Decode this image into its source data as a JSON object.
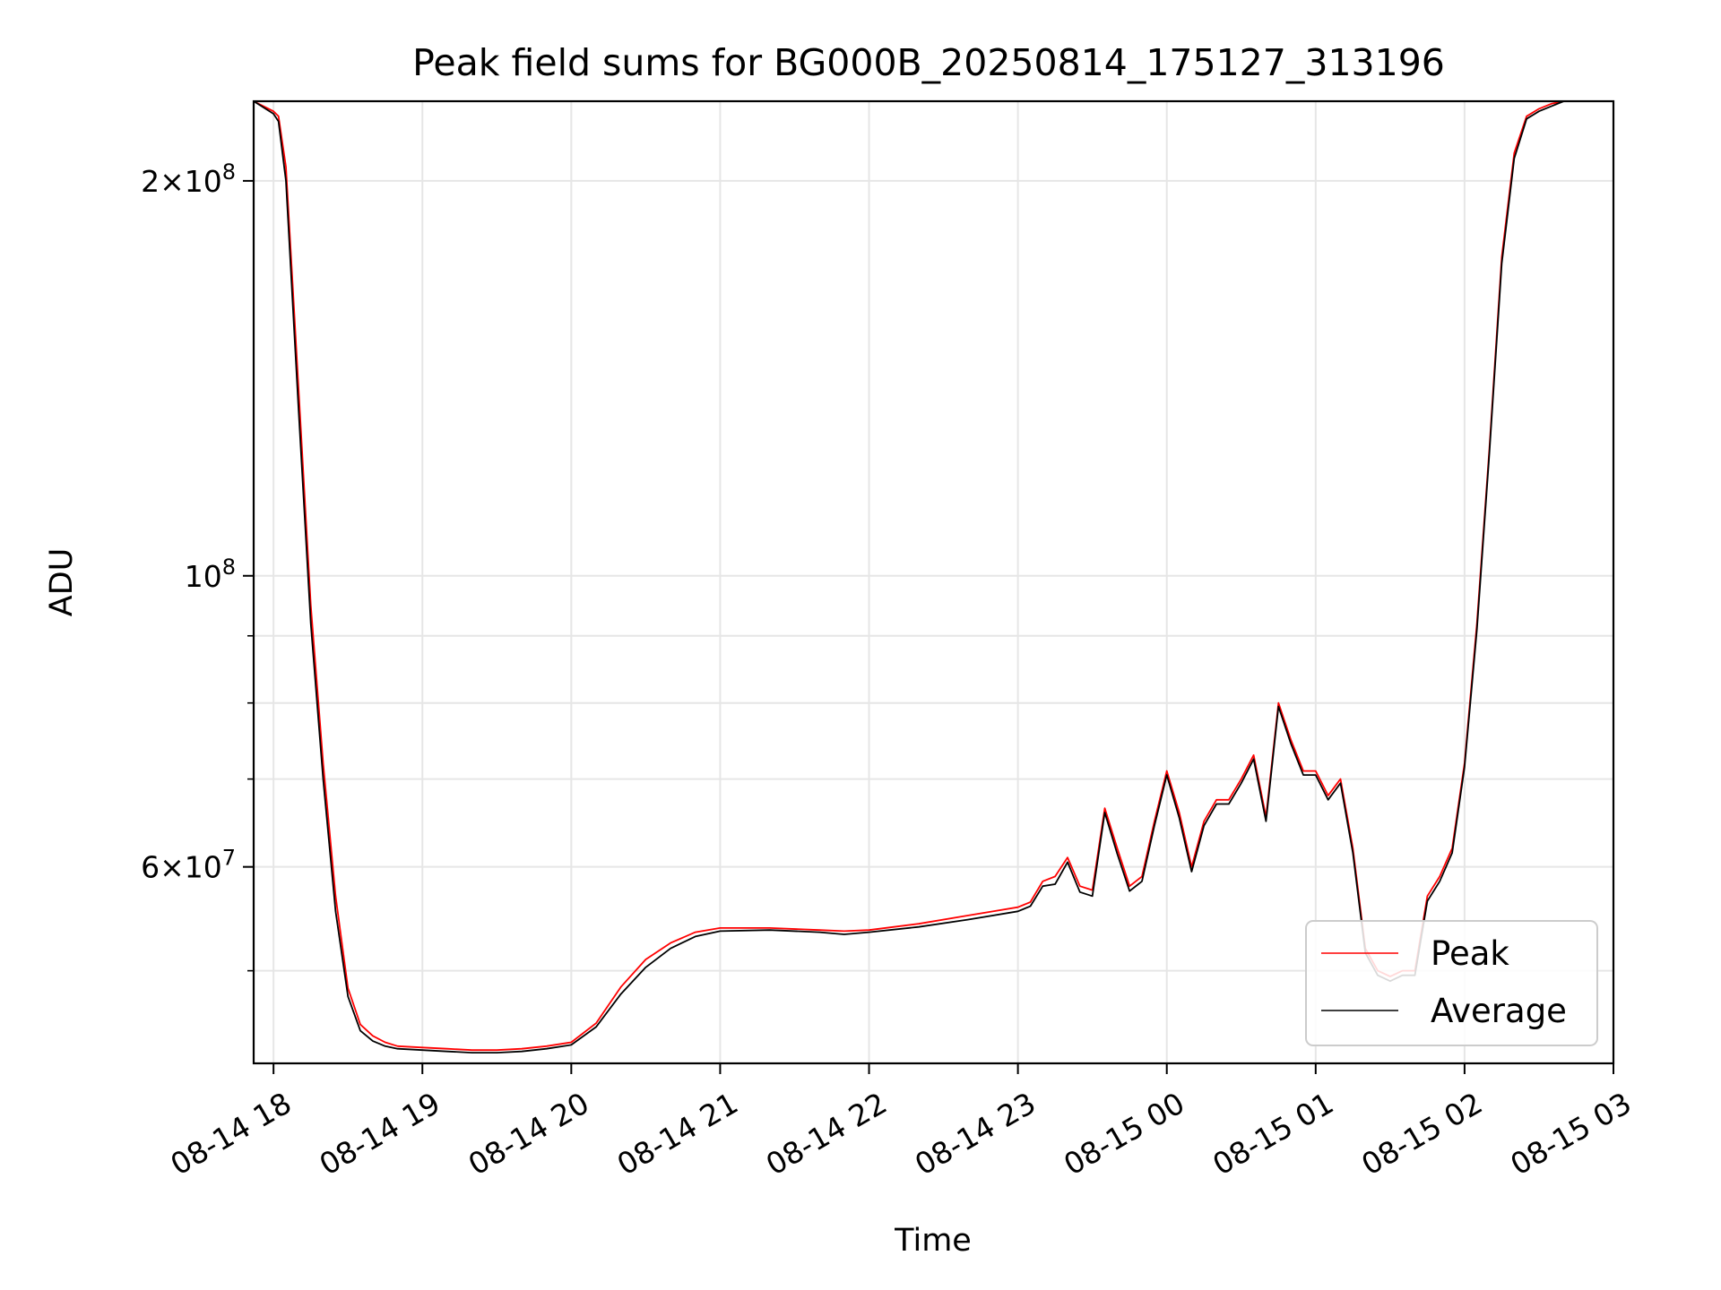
{
  "chart_data": {
    "type": "line",
    "title": "Peak field sums for BG000B_20250814_175127_313196",
    "xlabel": "Time",
    "ylabel": "ADU",
    "yscale": "log",
    "grid": true,
    "legend_position": "lower right",
    "xlim": [
      "08-14 17:52",
      "08-15 03:00"
    ],
    "ylim": [
      42500000,
      230000000
    ],
    "x_ticks": [
      {
        "time": "08-14 18:00",
        "label": "08-14 18"
      },
      {
        "time": "08-14 19:00",
        "label": "08-14 19"
      },
      {
        "time": "08-14 20:00",
        "label": "08-14 20"
      },
      {
        "time": "08-14 21:00",
        "label": "08-14 21"
      },
      {
        "time": "08-14 22:00",
        "label": "08-14 22"
      },
      {
        "time": "08-14 23:00",
        "label": "08-14 23"
      },
      {
        "time": "08-15 00:00",
        "label": "08-15 00"
      },
      {
        "time": "08-15 01:00",
        "label": "08-15 01"
      },
      {
        "time": "08-15 02:00",
        "label": "08-15 02"
      },
      {
        "time": "08-15 03:00",
        "label": "08-15 03"
      }
    ],
    "y_major_ticks": [
      {
        "value": 60000000,
        "label_mantissa": "6",
        "label_exp": "7",
        "form": "times"
      },
      {
        "value": 100000000,
        "label_mantissa": "",
        "label_exp": "8",
        "form": "power"
      },
      {
        "value": 200000000,
        "label_mantissa": "2",
        "label_exp": "8",
        "form": "times"
      }
    ],
    "y_minor_ticks": [
      50000000,
      70000000,
      80000000,
      90000000
    ],
    "series": [
      {
        "name": "Peak",
        "color": "#ff0000",
        "x": [
          "08-14 17:52",
          "08-14 18:00",
          "08-14 18:02",
          "08-14 18:05",
          "08-14 18:10",
          "08-14 18:15",
          "08-14 18:20",
          "08-14 18:25",
          "08-14 18:30",
          "08-14 18:35",
          "08-14 18:40",
          "08-14 18:45",
          "08-14 18:50",
          "08-14 19:00",
          "08-14 19:10",
          "08-14 19:20",
          "08-14 19:30",
          "08-14 19:40",
          "08-14 19:50",
          "08-14 20:00",
          "08-14 20:10",
          "08-14 20:20",
          "08-14 20:30",
          "08-14 20:40",
          "08-14 20:50",
          "08-14 21:00",
          "08-14 21:20",
          "08-14 21:40",
          "08-14 21:50",
          "08-14 22:00",
          "08-14 22:20",
          "08-14 22:40",
          "08-14 23:00",
          "08-14 23:05",
          "08-14 23:10",
          "08-14 23:15",
          "08-14 23:20",
          "08-14 23:25",
          "08-14 23:30",
          "08-14 23:35",
          "08-14 23:40",
          "08-14 23:45",
          "08-14 23:50",
          "08-14 23:55",
          "08-15 00:00",
          "08-15 00:05",
          "08-15 00:10",
          "08-15 00:15",
          "08-15 00:20",
          "08-15 00:25",
          "08-15 00:30",
          "08-15 00:35",
          "08-15 00:40",
          "08-15 00:45",
          "08-15 00:50",
          "08-15 00:55",
          "08-15 01:00",
          "08-15 01:05",
          "08-15 01:10",
          "08-15 01:15",
          "08-15 01:20",
          "08-15 01:25",
          "08-15 01:30",
          "08-15 01:35",
          "08-15 01:40",
          "08-15 01:45",
          "08-15 01:50",
          "08-15 01:55",
          "08-15 02:00",
          "08-15 02:05",
          "08-15 02:10",
          "08-15 02:15",
          "08-15 02:20",
          "08-15 02:25",
          "08-15 02:30",
          "08-15 02:35",
          "08-15 02:40",
          "08-15 02:45",
          "08-15 02:50",
          "08-15 02:55",
          "08-15 03:00"
        ],
        "y": [
          230000000,
          226000000,
          224000000,
          205000000,
          140000000,
          95000000,
          72000000,
          57000000,
          48500000,
          45500000,
          44600000,
          44100000,
          43800000,
          43700000,
          43600000,
          43500000,
          43500000,
          43600000,
          43800000,
          44100000,
          45600000,
          48600000,
          51000000,
          52500000,
          53500000,
          53900000,
          53900000,
          53700000,
          53600000,
          53700000,
          54300000,
          55100000,
          55900000,
          56400000,
          58500000,
          59000000,
          61000000,
          58000000,
          57600000,
          66500000,
          62000000,
          58000000,
          59000000,
          65000000,
          71000000,
          66000000,
          60000000,
          65000000,
          67500000,
          67500000,
          70000000,
          73000000,
          65500000,
          80000000,
          75000000,
          71000000,
          71000000,
          68000000,
          70000000,
          62000000,
          52000000,
          50000000,
          49500000,
          50000000,
          50000000,
          57000000,
          59000000,
          62000000,
          72000000,
          92000000,
          125000000,
          175000000,
          210000000,
          224000000,
          227000000,
          229000000,
          230000000,
          230000000,
          230000000,
          230000000,
          230000000
        ]
      },
      {
        "name": "Average",
        "color": "#000000",
        "x": [
          "08-14 17:52",
          "08-14 18:00",
          "08-14 18:02",
          "08-14 18:05",
          "08-14 18:10",
          "08-14 18:15",
          "08-14 18:20",
          "08-14 18:25",
          "08-14 18:30",
          "08-14 18:35",
          "08-14 18:40",
          "08-14 18:45",
          "08-14 18:50",
          "08-14 19:00",
          "08-14 19:10",
          "08-14 19:20",
          "08-14 19:30",
          "08-14 19:40",
          "08-14 19:50",
          "08-14 20:00",
          "08-14 20:10",
          "08-14 20:20",
          "08-14 20:30",
          "08-14 20:40",
          "08-14 20:50",
          "08-14 21:00",
          "08-14 21:20",
          "08-14 21:40",
          "08-14 21:50",
          "08-14 22:00",
          "08-14 22:20",
          "08-14 22:40",
          "08-14 23:00",
          "08-14 23:05",
          "08-14 23:10",
          "08-14 23:15",
          "08-14 23:20",
          "08-14 23:25",
          "08-14 23:30",
          "08-14 23:35",
          "08-14 23:40",
          "08-14 23:45",
          "08-14 23:50",
          "08-14 23:55",
          "08-15 00:00",
          "08-15 00:05",
          "08-15 00:10",
          "08-15 00:15",
          "08-15 00:20",
          "08-15 00:25",
          "08-15 00:30",
          "08-15 00:35",
          "08-15 00:40",
          "08-15 00:45",
          "08-15 00:50",
          "08-15 00:55",
          "08-15 01:00",
          "08-15 01:05",
          "08-15 01:10",
          "08-15 01:15",
          "08-15 01:20",
          "08-15 01:25",
          "08-15 01:30",
          "08-15 01:35",
          "08-15 01:40",
          "08-15 01:45",
          "08-15 01:50",
          "08-15 01:55",
          "08-15 02:00",
          "08-15 02:05",
          "08-15 02:10",
          "08-15 02:15",
          "08-15 02:20",
          "08-15 02:25",
          "08-15 02:30",
          "08-15 02:35",
          "08-15 02:40",
          "08-15 02:45",
          "08-15 02:50",
          "08-15 02:55",
          "08-15 03:00"
        ],
        "y": [
          230000000,
          225000000,
          222000000,
          200000000,
          135000000,
          92000000,
          70000000,
          55500000,
          47800000,
          45000000,
          44200000,
          43800000,
          43600000,
          43500000,
          43400000,
          43300000,
          43300000,
          43400000,
          43600000,
          43900000,
          45300000,
          48000000,
          50300000,
          52000000,
          53100000,
          53600000,
          53700000,
          53500000,
          53300000,
          53500000,
          54000000,
          54700000,
          55500000,
          56000000,
          58000000,
          58200000,
          60500000,
          57400000,
          57000000,
          66000000,
          61400000,
          57500000,
          58500000,
          64500000,
          70500000,
          65400000,
          59500000,
          64500000,
          67000000,
          67000000,
          69500000,
          72500000,
          65000000,
          79500000,
          74500000,
          70500000,
          70500000,
          67500000,
          69500000,
          61500000,
          51600000,
          49600000,
          49100000,
          49600000,
          49600000,
          56500000,
          58500000,
          61500000,
          71500000,
          91000000,
          124000000,
          173000000,
          208000000,
          223000000,
          226000000,
          228000000,
          230000000,
          230000000,
          230000000,
          230000000,
          230000000
        ]
      }
    ]
  }
}
